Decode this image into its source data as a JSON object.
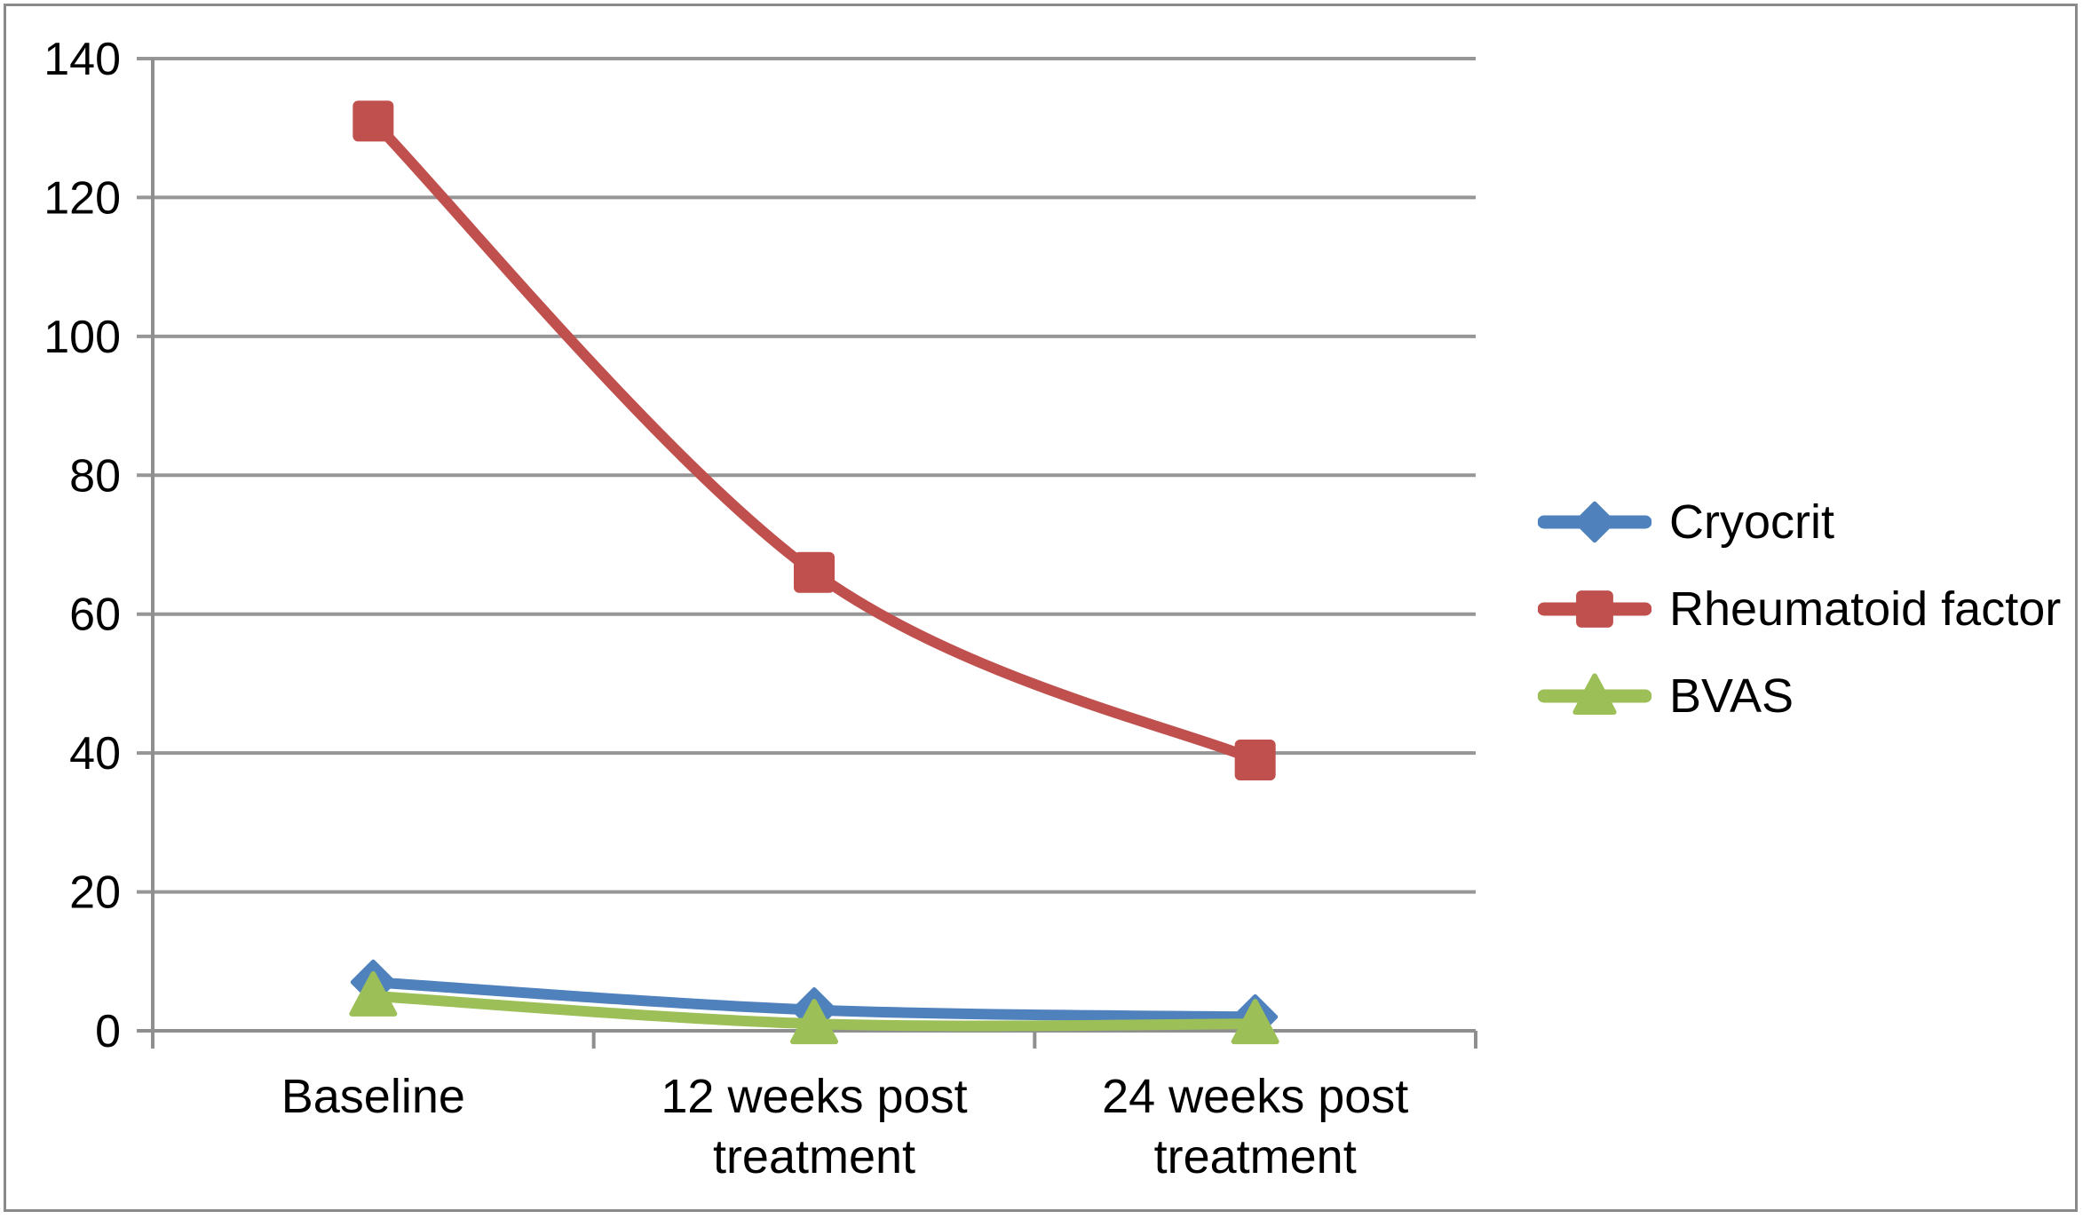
{
  "chart_data": {
    "type": "line",
    "title": "",
    "xlabel": "",
    "ylabel": "",
    "categories": [
      "Baseline",
      "12 weeks post treatment",
      "24 weeks post treatment"
    ],
    "category_label_lines": [
      [
        "Baseline"
      ],
      [
        "12 weeks post",
        "treatment"
      ],
      [
        "24 weeks post",
        "treatment"
      ]
    ],
    "series": [
      {
        "name": "Cryocrit",
        "values": [
          7,
          3,
          2
        ],
        "color": "#4F81BD",
        "marker": "diamond"
      },
      {
        "name": "Rheumatoid factor",
        "values": [
          131,
          66,
          39
        ],
        "color": "#C0504D",
        "marker": "square"
      },
      {
        "name": "BVAS",
        "values": [
          5,
          1,
          1
        ],
        "color": "#9CBF57",
        "marker": "triangle"
      }
    ],
    "ylim": [
      0,
      140
    ],
    "yticks": [
      0,
      20,
      40,
      60,
      80,
      100,
      120,
      140
    ],
    "grid": true,
    "line_style": "smooth",
    "legend_position": "right"
  },
  "legend": {
    "items": [
      "Cryocrit",
      "Rheumatoid factor",
      "BVAS"
    ]
  },
  "colors": {
    "background": "#ffffff",
    "frame": "#8a8a8a",
    "gridline": "#969696",
    "axis": "#8f8f8f",
    "text": "#000000",
    "series_blue": "#4F81BD",
    "series_red": "#C0504D",
    "series_green": "#9CBF57"
  }
}
